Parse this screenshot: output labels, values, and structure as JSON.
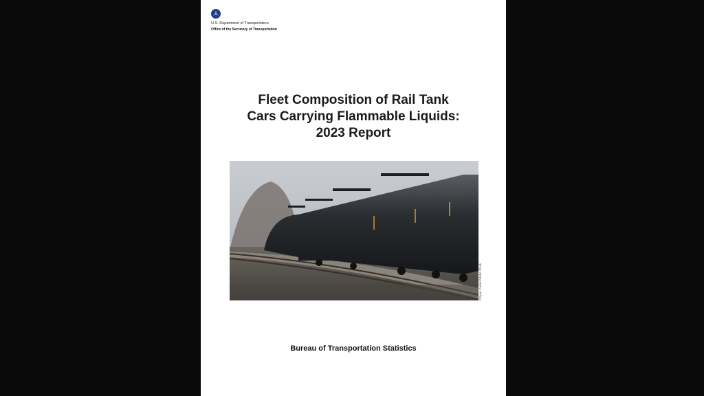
{
  "header": {
    "org_line1": "U.S. Department of Transportation",
    "org_line2": "Office of the Secretary of Transportation",
    "logo_icon": "dot-triskelion-logo",
    "logo_color": "#1f3f8a"
  },
  "title": {
    "line1": "Fleet Composition of Rail Tank",
    "line2": "Cars Carrying Flammable Liquids:",
    "line3": "2023 Report"
  },
  "photo": {
    "subject": "rail tank cars train",
    "credit": "©Ryan Carter/Adobe Stock"
  },
  "footer": {
    "publisher": "Bureau of Transportation Statistics"
  }
}
